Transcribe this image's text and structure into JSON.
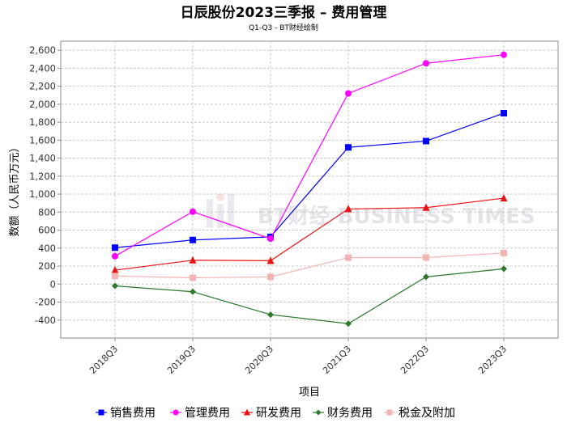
{
  "chart_data": {
    "type": "line",
    "title": "日辰股份2023三季报 – 费用管理",
    "subtitle": "Q1-Q3 - BT财经绘制",
    "xlabel": "项目",
    "ylabel": "数额（人民币万元）",
    "categories": [
      "2018Q3",
      "2019Q3",
      "2020Q3",
      "2021Q3",
      "2022Q3",
      "2023Q3"
    ],
    "ylim": [
      -600,
      2700
    ],
    "yticks": [
      -400,
      -200,
      0,
      200,
      400,
      600,
      800,
      1000,
      1200,
      1400,
      1600,
      1800,
      2000,
      2200,
      2400,
      2600
    ],
    "ytick_labels": [
      "-400",
      "-200",
      "0",
      "200",
      "400",
      "600",
      "800",
      "1,000",
      "1,200",
      "1,400",
      "1,600",
      "1,800",
      "2,000",
      "2,200",
      "2,400",
      "2,600"
    ],
    "grid": true,
    "legend_position": "bottom",
    "watermark": "BT财经 BUSINESS TIMES",
    "series": [
      {
        "name": "销售费用",
        "color": "#0000ff",
        "marker": "square",
        "values": [
          405,
          490,
          525,
          1520,
          1590,
          1900
        ]
      },
      {
        "name": "管理费用",
        "color": "#ff00ff",
        "marker": "circle",
        "values": [
          310,
          805,
          505,
          2120,
          2455,
          2550
        ]
      },
      {
        "name": "研发费用",
        "color": "#ee1111",
        "marker": "triangle",
        "values": [
          155,
          265,
          260,
          835,
          850,
          955
        ]
      },
      {
        "name": "财务费用",
        "color": "#2a7a2a",
        "marker": "diamond",
        "values": [
          -20,
          -85,
          -340,
          -440,
          80,
          170
        ]
      },
      {
        "name": "税金及附加",
        "color": "#f4b4b4",
        "marker": "square",
        "values": [
          90,
          70,
          80,
          295,
          295,
          345
        ]
      }
    ]
  }
}
